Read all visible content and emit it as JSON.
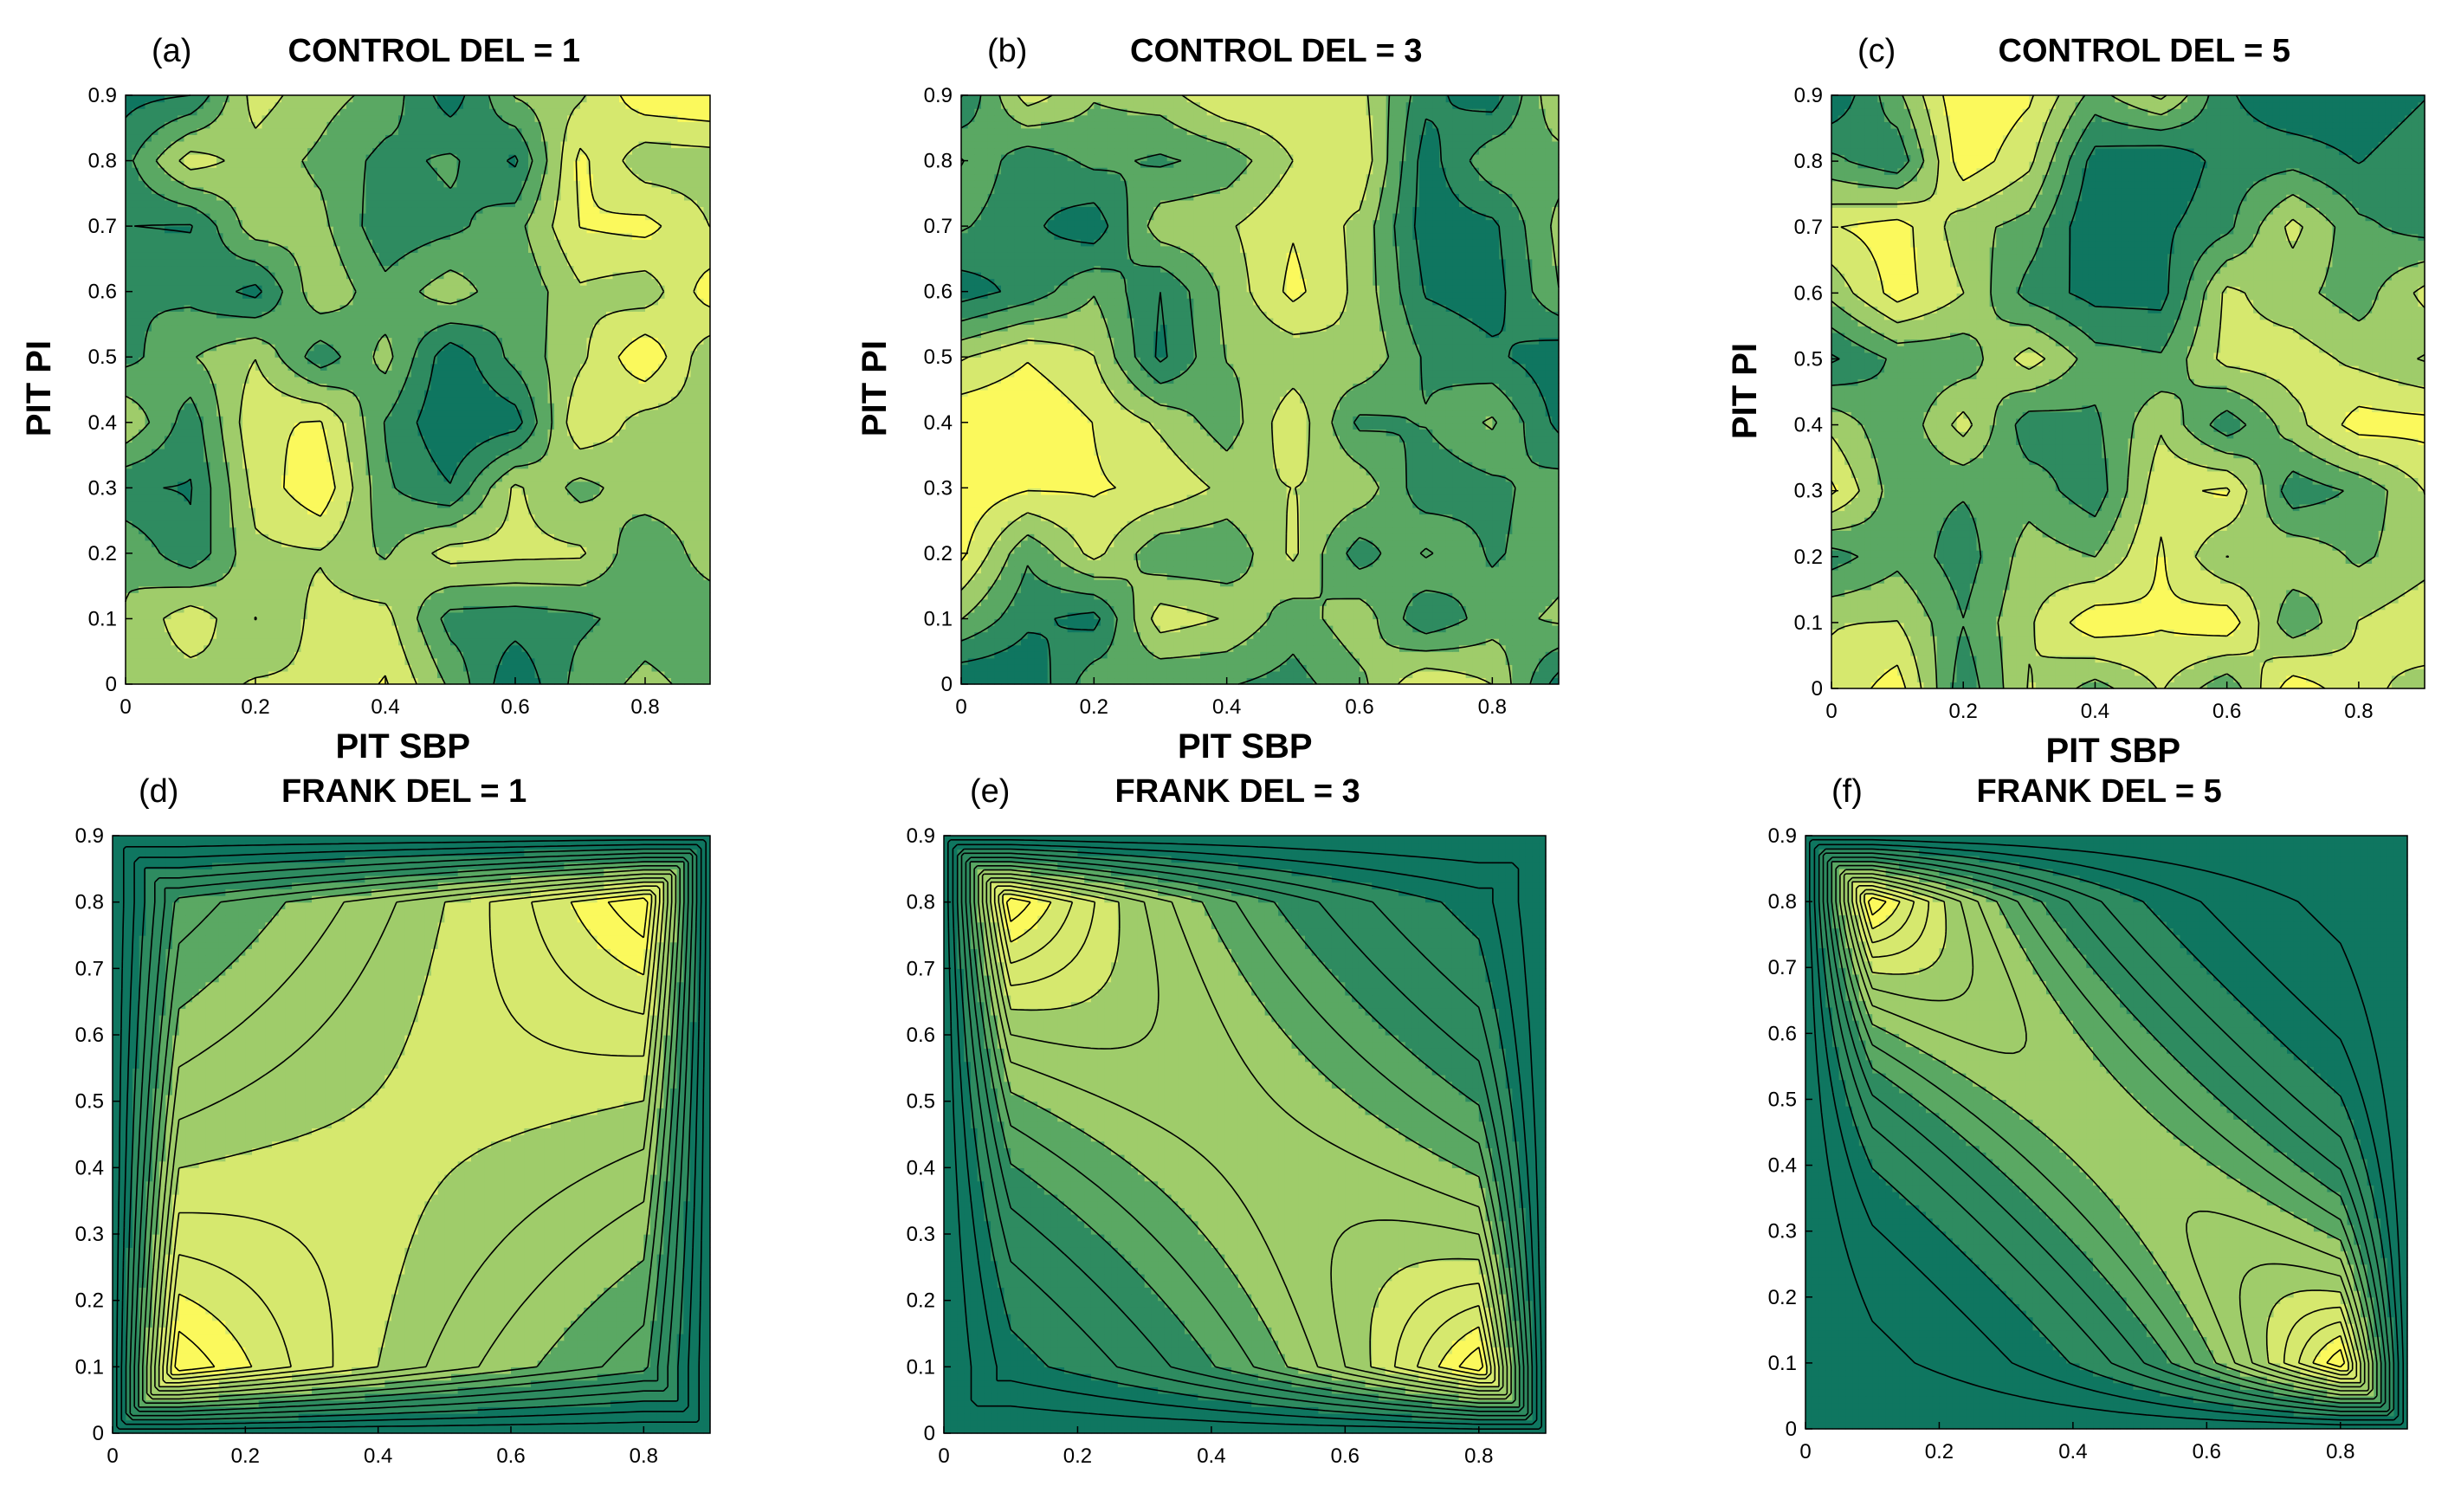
{
  "colors": {
    "dark": "#0f7660",
    "mid_dark": "#2e8b60",
    "mid": "#5aa863",
    "mid_light": "#9fcc6a",
    "light": "#d6e86e",
    "yellow": "#fbf95c",
    "contour_line": "#000000",
    "axis": "#000000"
  },
  "chart_data": [
    {
      "id": "a",
      "type": "heatmap",
      "tag": "(a)",
      "title": "CONTROL DEL = 1",
      "xlabel": "PIT SBP",
      "ylabel": "PIT PI",
      "xlim": [
        0,
        0.9
      ],
      "ylim": [
        0,
        0.9
      ],
      "xticks": [
        "0",
        "0.2",
        "0.4",
        "0.6",
        "0.8"
      ],
      "yticks": [
        "0",
        "0.1",
        "0.2",
        "0.3",
        "0.4",
        "0.5",
        "0.6",
        "0.7",
        "0.8",
        "0.9"
      ],
      "pattern": "random",
      "seed": 11
    },
    {
      "id": "b",
      "type": "heatmap",
      "tag": "(b)",
      "title": "CONTROL DEL = 3",
      "xlabel": "PIT SBP",
      "ylabel": "PIT PI",
      "xlim": [
        0,
        0.9
      ],
      "ylim": [
        0,
        0.9
      ],
      "xticks": [
        "0",
        "0.2",
        "0.4",
        "0.6",
        "0.8"
      ],
      "yticks": [
        "0",
        "0.1",
        "0.2",
        "0.3",
        "0.4",
        "0.5",
        "0.6",
        "0.7",
        "0.8",
        "0.9"
      ],
      "pattern": "random",
      "seed": 23
    },
    {
      "id": "c",
      "type": "heatmap",
      "tag": "(c)",
      "title": "CONTROL DEL = 5",
      "xlabel": "PIT SBP",
      "ylabel": "PIT PI",
      "xlim": [
        0,
        0.9
      ],
      "ylim": [
        0,
        0.9
      ],
      "xticks": [
        "0",
        "0.2",
        "0.4",
        "0.6",
        "0.8"
      ],
      "yticks": [
        "0",
        "0.1",
        "0.2",
        "0.3",
        "0.4",
        "0.5",
        "0.6",
        "0.7",
        "0.8",
        "0.9"
      ],
      "pattern": "random",
      "seed": 37
    },
    {
      "id": "d",
      "type": "heatmap",
      "tag": "(d)",
      "title": "FRANK DEL = 1",
      "xlabel": "",
      "ylabel": "",
      "xlim": [
        0,
        0.9
      ],
      "ylim": [
        0,
        0.9
      ],
      "xticks": [
        "0",
        "0.2",
        "0.4",
        "0.6",
        "0.8"
      ],
      "yticks": [
        "0",
        "0.1",
        "0.2",
        "0.3",
        "0.4",
        "0.5",
        "0.6",
        "0.7",
        "0.8",
        "0.9"
      ],
      "pattern": "frank",
      "delta": 1
    },
    {
      "id": "e",
      "type": "heatmap",
      "tag": "(e)",
      "title": "FRANK DEL = 3",
      "xlabel": "",
      "ylabel": "",
      "xlim": [
        0,
        0.9
      ],
      "ylim": [
        0,
        0.9
      ],
      "xticks": [
        "0",
        "0.2",
        "0.4",
        "0.6",
        "0.8"
      ],
      "yticks": [
        "0",
        "0.1",
        "0.2",
        "0.3",
        "0.4",
        "0.5",
        "0.6",
        "0.7",
        "0.8",
        "0.9"
      ],
      "pattern": "frank",
      "delta": 3
    },
    {
      "id": "f",
      "type": "heatmap",
      "tag": "(f)",
      "title": "FRANK DEL = 5",
      "xlabel": "",
      "ylabel": "",
      "xlim": [
        0,
        0.9
      ],
      "ylim": [
        0,
        0.9
      ],
      "xticks": [
        "0",
        "0.2",
        "0.4",
        "0.6",
        "0.8"
      ],
      "yticks": [
        "0",
        "0.1",
        "0.2",
        "0.3",
        "0.4",
        "0.5",
        "0.6",
        "0.7",
        "0.8",
        "0.9"
      ],
      "pattern": "frank",
      "delta": 5
    }
  ]
}
